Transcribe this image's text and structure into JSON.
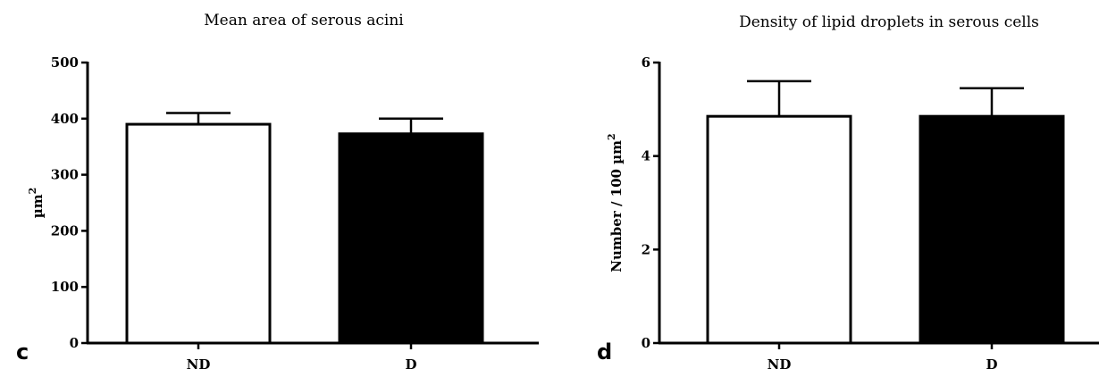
{
  "chart_data": [
    {
      "type": "bar",
      "panel": "c",
      "title": "Mean area of serous acini",
      "ylabel": "µm",
      "ylabel_sup": "2",
      "categories": [
        "ND",
        "D"
      ],
      "values": [
        390,
        373
      ],
      "errors": [
        20,
        27
      ],
      "bar_colors": [
        "#ffffff",
        "#000000"
      ],
      "ylim": [
        0,
        500
      ],
      "yticks": [
        0,
        100,
        200,
        300,
        400,
        500
      ],
      "grid": false
    },
    {
      "type": "bar",
      "panel": "d",
      "title": "Density of lipid droplets in serous cells",
      "ylabel": "Number / 100 µm",
      "ylabel_sup": "2",
      "categories": [
        "ND",
        "D"
      ],
      "values": [
        4.85,
        4.85
      ],
      "errors": [
        0.75,
        0.6
      ],
      "bar_colors": [
        "#ffffff",
        "#000000"
      ],
      "ylim": [
        0,
        6
      ],
      "yticks": [
        0,
        2,
        4,
        6
      ],
      "grid": false
    }
  ]
}
